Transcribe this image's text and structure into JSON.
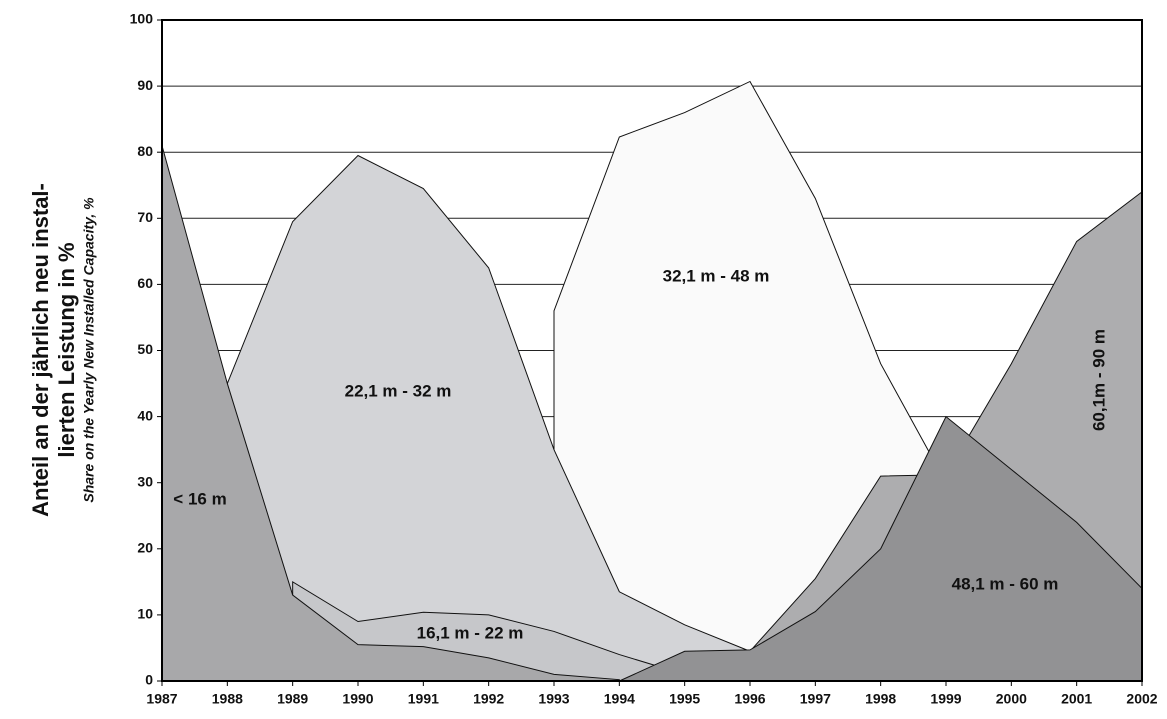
{
  "chart_data": {
    "type": "area",
    "ylabel": [
      "Anteil an der jährlich neu instal-",
      "lierten Leistung in %"
    ],
    "ylabel_sub": "Share on the Yearly New Installed Capacity, %",
    "x": [
      1987,
      1988,
      1989,
      1990,
      1991,
      1992,
      1993,
      1994,
      1995,
      1996,
      1997,
      1998,
      1999,
      2000,
      2001,
      2002
    ],
    "xlim": [
      1987,
      2002
    ],
    "xticks": [
      1987,
      1988,
      1989,
      1990,
      1991,
      1992,
      1993,
      1994,
      1995,
      1996,
      1997,
      1998,
      1999,
      2000,
      2001,
      2002
    ],
    "ylim": [
      0,
      100
    ],
    "yticks": [
      0,
      10,
      20,
      30,
      40,
      50,
      60,
      70,
      80,
      90,
      100
    ],
    "grid": true,
    "series": [
      {
        "name": "32,1 m - 48 m",
        "color": "#fafafa",
        "values": [
          null,
          null,
          null,
          null,
          null,
          null,
          56,
          82.3,
          86,
          90.7,
          73,
          48,
          30,
          null,
          null,
          null
        ]
      },
      {
        "name": "22,1 m -  32 m",
        "color": "#d3d4d7",
        "values": [
          null,
          45,
          69.5,
          79.5,
          74.5,
          62.5,
          35,
          13.5,
          8.5,
          4.5,
          null,
          null,
          null,
          null,
          null,
          null
        ]
      },
      {
        "name": "16,1 m - 22 m",
        "color": "#c6c7ca",
        "values": [
          null,
          null,
          15,
          9,
          10.4,
          10,
          7.5,
          4,
          1,
          null,
          null,
          null,
          null,
          null,
          null,
          null
        ]
      },
      {
        "name": "< 16 m",
        "color": "#a8a8aa",
        "values": [
          81,
          45,
          13,
          5.5,
          5.2,
          3.5,
          1,
          0.2,
          null,
          null,
          null,
          null,
          null,
          null,
          null,
          null
        ]
      },
      {
        "name": "60,1m - 90 m",
        "color": "#adadaf",
        "values": [
          null,
          null,
          null,
          null,
          null,
          null,
          null,
          null,
          null,
          4.5,
          15.5,
          31,
          31.2,
          48,
          66.5,
          74
        ]
      },
      {
        "name": "48,1 m - 60 m",
        "color": "#929294",
        "values": [
          null,
          null,
          null,
          null,
          null,
          null,
          null,
          0,
          4.5,
          4.7,
          10.5,
          20,
          40,
          32,
          24,
          14
        ]
      }
    ]
  }
}
